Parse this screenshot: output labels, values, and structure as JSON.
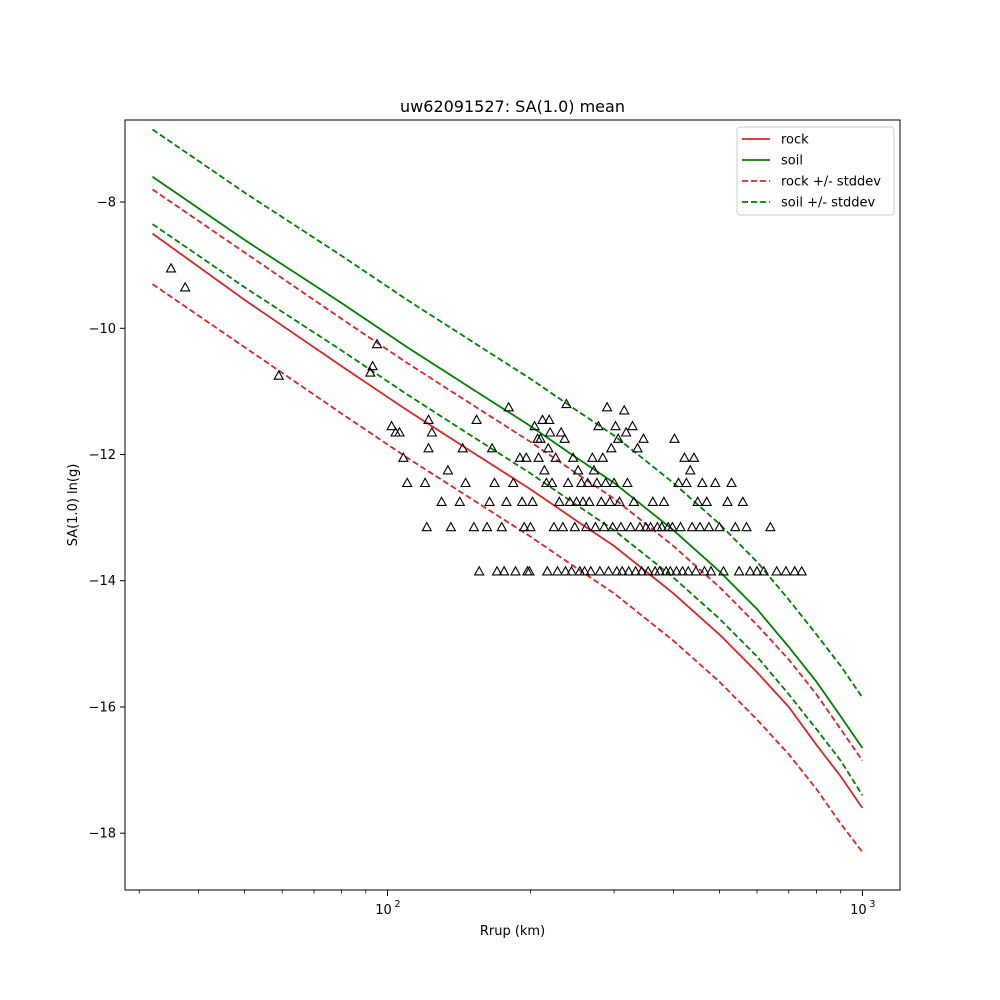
{
  "chart_data": {
    "type": "scatter",
    "title": "uw62091527: SA(1.0) mean",
    "xlabel": "Rrup (km)",
    "ylabel": "SA(1.0) ln(g)",
    "xscale": "log",
    "xlim": [
      28,
      1200
    ],
    "ylim": [
      -18.9,
      -6.7
    ],
    "x_ticks": [
      {
        "value": 100,
        "base": "10",
        "exp": "2"
      },
      {
        "value": 1000,
        "base": "10",
        "exp": "3"
      }
    ],
    "y_ticks": [
      {
        "value": -18,
        "label": "−18"
      },
      {
        "value": -16,
        "label": "−16"
      },
      {
        "value": -14,
        "label": "−14"
      },
      {
        "value": -12,
        "label": "−12"
      },
      {
        "value": -10,
        "label": "−10"
      },
      {
        "value": -8,
        "label": "−8"
      }
    ],
    "grid": false,
    "legend_position": "top-right",
    "legend": [
      {
        "label": "rock",
        "color": "#d62728",
        "dash": "solid"
      },
      {
        "label": "soil",
        "color": "#008000",
        "dash": "solid"
      },
      {
        "label": "rock +/- stddev",
        "color": "#d62728",
        "dash": "dashed"
      },
      {
        "label": "soil +/- stddev",
        "color": "#008000",
        "dash": "dashed"
      }
    ],
    "colors": {
      "rock": "#d62728",
      "soil": "#008000",
      "observed": "#000000"
    },
    "series": [
      {
        "name": "rock",
        "color": "#d62728",
        "dash": "solid",
        "x": [
          32,
          50,
          80,
          110,
          150,
          200,
          250,
          300,
          400,
          500,
          600,
          700,
          800,
          900,
          1000
        ],
        "y": [
          -8.5,
          -9.55,
          -10.6,
          -11.3,
          -11.95,
          -12.55,
          -13.05,
          -13.45,
          -14.2,
          -14.85,
          -15.45,
          -16.0,
          -16.6,
          -17.1,
          -17.6
        ]
      },
      {
        "name": "soil",
        "color": "#008000",
        "dash": "solid",
        "x": [
          32,
          40,
          50,
          80,
          110,
          150,
          200,
          250,
          300,
          400,
          500,
          600,
          700,
          800,
          900,
          1000
        ],
        "y": [
          -7.6,
          -8.1,
          -8.6,
          -9.6,
          -10.3,
          -10.95,
          -11.55,
          -12.05,
          -12.45,
          -13.2,
          -13.85,
          -14.45,
          -15.05,
          -15.6,
          -16.15,
          -16.65
        ]
      },
      {
        "name": "rock +/- stddev",
        "color": "#d62728",
        "dash": "dashed",
        "x": [
          32,
          50,
          80,
          110,
          150,
          200,
          250,
          300,
          400,
          500,
          600,
          700,
          800,
          900,
          1000
        ],
        "y": [
          -7.8,
          -8.8,
          -9.85,
          -10.55,
          -11.2,
          -11.8,
          -12.3,
          -12.7,
          -13.45,
          -14.1,
          -14.7,
          -15.25,
          -15.8,
          -16.35,
          -16.85
        ]
      },
      {
        "name": "rock +/- stddev",
        "color": "#d62728",
        "dash": "dashed",
        "x": [
          32,
          50,
          80,
          110,
          150,
          200,
          250,
          300,
          400,
          500,
          600,
          700,
          800,
          900,
          1000
        ],
        "y": [
          -9.3,
          -10.3,
          -11.35,
          -12.05,
          -12.7,
          -13.3,
          -13.8,
          -14.2,
          -14.95,
          -15.6,
          -16.2,
          -16.75,
          -17.3,
          -17.85,
          -18.3
        ]
      },
      {
        "name": "soil +/- stddev",
        "color": "#008000",
        "dash": "dashed",
        "x": [
          32,
          40,
          50,
          80,
          110,
          150,
          200,
          250,
          300,
          400,
          500,
          600,
          700,
          800,
          900,
          1000
        ],
        "y": [
          -6.85,
          -7.35,
          -7.85,
          -8.85,
          -9.55,
          -10.2,
          -10.8,
          -11.3,
          -11.7,
          -12.45,
          -13.1,
          -13.7,
          -14.3,
          -14.85,
          -15.35,
          -15.85
        ]
      },
      {
        "name": "soil +/- stddev",
        "color": "#008000",
        "dash": "dashed",
        "x": [
          32,
          40,
          50,
          80,
          110,
          150,
          200,
          250,
          300,
          400,
          500,
          600,
          700,
          800,
          900,
          1000
        ],
        "y": [
          -8.35,
          -8.85,
          -9.35,
          -10.35,
          -11.05,
          -11.7,
          -12.3,
          -12.8,
          -13.2,
          -13.95,
          -14.6,
          -15.2,
          -15.8,
          -16.35,
          -16.85,
          -17.4
        ]
      }
    ],
    "points": [
      [
        35,
        -9.05
      ],
      [
        37.5,
        -9.35
      ],
      [
        59,
        -10.75
      ],
      [
        92,
        -10.7
      ],
      [
        93,
        -10.6
      ],
      [
        95,
        -10.25
      ],
      [
        102,
        -11.55
      ],
      [
        104,
        -11.65
      ],
      [
        106,
        -11.65
      ],
      [
        108,
        -12.05
      ],
      [
        110,
        -12.45
      ],
      [
        120,
        -12.45
      ],
      [
        121,
        -13.15
      ],
      [
        122,
        -11.45
      ],
      [
        122,
        -11.9
      ],
      [
        124,
        -11.65
      ],
      [
        130,
        -12.75
      ],
      [
        134,
        -12.25
      ],
      [
        136,
        -13.15
      ],
      [
        142,
        -12.75
      ],
      [
        144,
        -11.9
      ],
      [
        146,
        -12.45
      ],
      [
        152,
        -13.15
      ],
      [
        154,
        -11.45
      ],
      [
        156,
        -13.85
      ],
      [
        162,
        -13.15
      ],
      [
        164,
        -12.75
      ],
      [
        166,
        -11.9
      ],
      [
        168,
        -12.45
      ],
      [
        170,
        -13.85
      ],
      [
        174,
        -13.15
      ],
      [
        176,
        -13.85
      ],
      [
        178,
        -12.75
      ],
      [
        180,
        -11.25
      ],
      [
        184,
        -12.45
      ],
      [
        186,
        -13.85
      ],
      [
        190,
        -12.05
      ],
      [
        192,
        -12.75
      ],
      [
        194,
        -13.15
      ],
      [
        196,
        -12.05
      ],
      [
        197,
        -13.85
      ],
      [
        199,
        -13.85
      ],
      [
        200,
        -13.15
      ],
      [
        202,
        -12.75
      ],
      [
        204,
        -11.55
      ],
      [
        207,
        -11.75
      ],
      [
        208,
        -12.05
      ],
      [
        210,
        -11.75
      ],
      [
        212,
        -11.45
      ],
      [
        214,
        -12.25
      ],
      [
        216,
        -12.45
      ],
      [
        217,
        -13.85
      ],
      [
        218,
        -11.9
      ],
      [
        219,
        -11.45
      ],
      [
        220,
        -11.65
      ],
      [
        222,
        -12.45
      ],
      [
        224,
        -13.15
      ],
      [
        226,
        -12.05
      ],
      [
        228,
        -13.85
      ],
      [
        230,
        -12.75
      ],
      [
        232,
        -11.65
      ],
      [
        234,
        -13.15
      ],
      [
        236,
        -11.75
      ],
      [
        237,
        -13.85
      ],
      [
        238,
        -11.2
      ],
      [
        240,
        -12.45
      ],
      [
        242,
        -12.75
      ],
      [
        244,
        -13.85
      ],
      [
        246,
        -12.05
      ],
      [
        248,
        -13.15
      ],
      [
        250,
        -12.75
      ],
      [
        252,
        -12.25
      ],
      [
        254,
        -13.85
      ],
      [
        256,
        -12.45
      ],
      [
        258,
        -12.75
      ],
      [
        260,
        -13.85
      ],
      [
        262,
        -13.15
      ],
      [
        264,
        -12.45
      ],
      [
        266,
        -12.75
      ],
      [
        268,
        -13.85
      ],
      [
        270,
        -12.05
      ],
      [
        272,
        -12.25
      ],
      [
        274,
        -13.15
      ],
      [
        276,
        -12.45
      ],
      [
        278,
        -11.55
      ],
      [
        280,
        -13.85
      ],
      [
        282,
        -12.75
      ],
      [
        284,
        -12.05
      ],
      [
        286,
        -13.15
      ],
      [
        288,
        -12.45
      ],
      [
        290,
        -11.25
      ],
      [
        292,
        -13.85
      ],
      [
        294,
        -12.75
      ],
      [
        296,
        -11.9
      ],
      [
        298,
        -13.15
      ],
      [
        300,
        -12.45
      ],
      [
        302,
        -11.55
      ],
      [
        304,
        -13.85
      ],
      [
        306,
        -11.75
      ],
      [
        308,
        -12.75
      ],
      [
        310,
        -13.15
      ],
      [
        312,
        -13.85
      ],
      [
        315,
        -11.3
      ],
      [
        318,
        -11.65
      ],
      [
        320,
        -12.45
      ],
      [
        322,
        -13.85
      ],
      [
        325,
        -13.15
      ],
      [
        328,
        -11.55
      ],
      [
        330,
        -12.75
      ],
      [
        333,
        -13.85
      ],
      [
        336,
        -11.9
      ],
      [
        340,
        -13.15
      ],
      [
        343,
        -13.85
      ],
      [
        346,
        -11.75
      ],
      [
        350,
        -13.15
      ],
      [
        354,
        -13.85
      ],
      [
        358,
        -13.15
      ],
      [
        362,
        -12.75
      ],
      [
        366,
        -13.85
      ],
      [
        370,
        -13.15
      ],
      [
        374,
        -13.85
      ],
      [
        378,
        -13.15
      ],
      [
        382,
        -12.75
      ],
      [
        386,
        -13.85
      ],
      [
        390,
        -13.15
      ],
      [
        394,
        -13.85
      ],
      [
        398,
        -13.15
      ],
      [
        402,
        -11.75
      ],
      [
        406,
        -13.85
      ],
      [
        410,
        -12.45
      ],
      [
        414,
        -13.15
      ],
      [
        418,
        -13.85
      ],
      [
        422,
        -12.05
      ],
      [
        426,
        -12.45
      ],
      [
        430,
        -13.85
      ],
      [
        434,
        -12.25
      ],
      [
        438,
        -13.15
      ],
      [
        442,
        -12.05
      ],
      [
        446,
        -13.85
      ],
      [
        450,
        -12.75
      ],
      [
        455,
        -13.15
      ],
      [
        460,
        -12.45
      ],
      [
        465,
        -13.85
      ],
      [
        470,
        -12.75
      ],
      [
        475,
        -13.15
      ],
      [
        480,
        -13.85
      ],
      [
        490,
        -12.45
      ],
      [
        500,
        -13.15
      ],
      [
        510,
        -13.85
      ],
      [
        520,
        -12.75
      ],
      [
        530,
        -12.45
      ],
      [
        540,
        -13.15
      ],
      [
        550,
        -13.85
      ],
      [
        560,
        -12.75
      ],
      [
        570,
        -13.15
      ],
      [
        580,
        -13.85
      ],
      [
        600,
        -13.85
      ],
      [
        620,
        -13.85
      ],
      [
        640,
        -13.15
      ],
      [
        660,
        -13.85
      ],
      [
        690,
        -13.85
      ],
      [
        720,
        -13.85
      ],
      [
        745,
        -13.85
      ]
    ]
  }
}
